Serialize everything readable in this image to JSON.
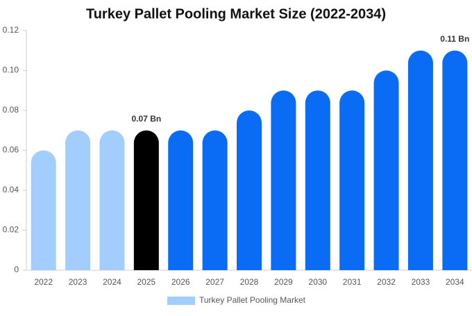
{
  "chart_data": {
    "type": "bar",
    "title": "Turkey Pallet Pooling Market Size (2022-2034)",
    "categories": [
      "2022",
      "2023",
      "2024",
      "2025",
      "2026",
      "2027",
      "2028",
      "2029",
      "2030",
      "2031",
      "2032",
      "2033",
      "2034"
    ],
    "series": [
      {
        "name": "Turkey Pallet Pooling Market",
        "color": "#a3cdfc",
        "values": [
          0.06,
          0.07,
          0.07,
          0.07,
          0.07,
          0.07,
          0.08,
          0.09,
          0.09,
          0.09,
          0.1,
          0.11,
          0.11
        ],
        "bar_colors": [
          "#a3cdfc",
          "#a3cdfc",
          "#a3cdfc",
          "#000000",
          "#0a6cf5",
          "#0a6cf5",
          "#0a6cf5",
          "#0a6cf5",
          "#0a6cf5",
          "#0a6cf5",
          "#0a6cf5",
          "#0a6cf5",
          "#0a6cf5"
        ],
        "value_labels": [
          null,
          null,
          null,
          "0.07 Bn",
          null,
          null,
          null,
          null,
          null,
          null,
          null,
          null,
          "0.11 Bn"
        ]
      }
    ],
    "ylim": [
      0,
      0.12
    ],
    "yticks": [
      0,
      0.02,
      0.04,
      0.06,
      0.08,
      {
        "value": 0.1,
        "label": "0.10"
      },
      0.12
    ]
  }
}
